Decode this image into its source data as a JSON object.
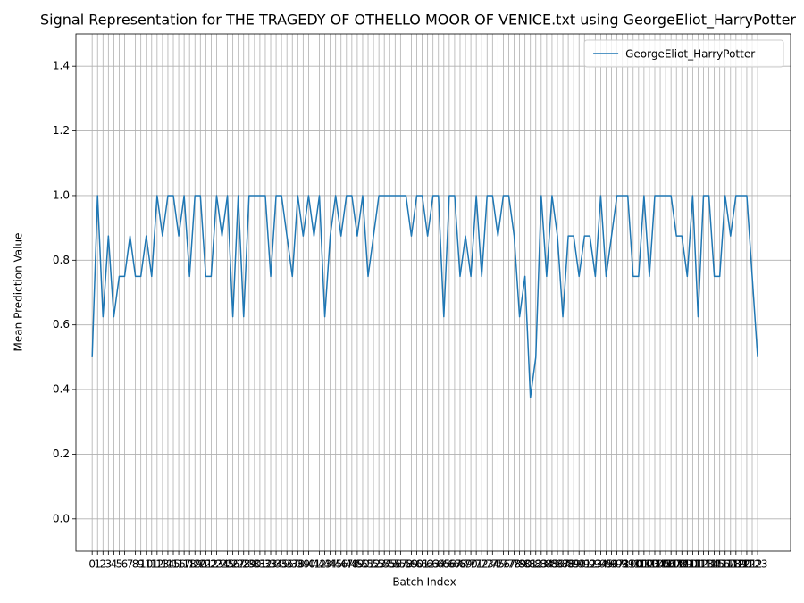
{
  "chart_data": {
    "type": "line",
    "title": "Signal Representation for THE TRAGEDY OF OTHELLO MOOR OF VENICE.txt using GeorgeEliot_HarryPotter",
    "xlabel": "Batch Index",
    "ylabel": "Mean Prediction Value",
    "x": [
      0,
      1,
      2,
      3,
      4,
      5,
      6,
      7,
      8,
      9,
      10,
      11,
      12,
      13,
      14,
      15,
      16,
      17,
      18,
      19,
      20,
      21,
      22,
      23,
      24,
      25,
      26,
      27,
      28,
      29,
      30,
      31,
      32,
      33,
      34,
      35,
      36,
      37,
      38,
      39,
      40,
      41,
      42,
      43,
      44,
      45,
      46,
      47,
      48,
      49,
      50,
      51,
      52,
      53,
      54,
      55,
      56,
      57,
      58,
      59,
      60,
      61,
      62,
      63,
      64,
      65,
      66,
      67,
      68,
      69,
      70,
      71,
      72,
      73,
      74,
      75,
      76,
      77,
      78,
      79,
      80,
      81,
      82,
      83,
      84,
      85,
      86,
      87,
      88,
      89,
      90,
      91,
      92,
      93,
      94,
      95,
      96,
      97,
      98,
      99,
      100,
      101,
      102,
      103,
      104,
      105,
      106,
      107,
      108,
      109,
      110,
      111,
      112,
      113,
      114,
      115,
      116,
      117,
      118,
      119,
      120,
      121,
      122,
      123
    ],
    "series": [
      {
        "name": "GeorgeEliot_HarryPotter",
        "color": "#1f77b4",
        "values": [
          0.5,
          1,
          0.625,
          0.875,
          0.625,
          0.75,
          0.75,
          0.875,
          0.75,
          0.75,
          0.875,
          0.75,
          1,
          0.875,
          1,
          1,
          0.875,
          1,
          0.75,
          1,
          1,
          0.75,
          0.75,
          1,
          0.875,
          1,
          0.625,
          1,
          0.625,
          1,
          1,
          1,
          1,
          0.75,
          1,
          1,
          0.875,
          0.75,
          1,
          0.875,
          1,
          0.875,
          1,
          0.625,
          0.875,
          1,
          0.875,
          1,
          1,
          0.875,
          1,
          0.75,
          0.875,
          1,
          1,
          1,
          1,
          1,
          1,
          0.875,
          1,
          1,
          0.875,
          1,
          1,
          0.625,
          1,
          1,
          0.75,
          0.875,
          0.75,
          1,
          0.75,
          1,
          1,
          0.875,
          1,
          1,
          0.875,
          0.625,
          0.75,
          0.375,
          0.5,
          1,
          0.75,
          1,
          0.875,
          0.625,
          0.875,
          0.875,
          0.75,
          0.875,
          0.875,
          0.75,
          1,
          0.75,
          0.875,
          1,
          1,
          1,
          0.75,
          0.75,
          1,
          0.75,
          1,
          1,
          1,
          1,
          0.875,
          0.875,
          0.75,
          1,
          0.625,
          1,
          1,
          0.75,
          0.75,
          1,
          0.875,
          1,
          1,
          1,
          0.75,
          0.5
        ]
      }
    ],
    "xlim": [
      -3,
      129.1
    ],
    "xticks": [
      0,
      1,
      2,
      3,
      4,
      5,
      6,
      7,
      8,
      9,
      10,
      11,
      12,
      13,
      14,
      15,
      16,
      17,
      18,
      19,
      20,
      21,
      22,
      23,
      24,
      25,
      26,
      27,
      28,
      29,
      30,
      31,
      32,
      33,
      34,
      35,
      36,
      37,
      38,
      39,
      40,
      41,
      42,
      43,
      44,
      45,
      46,
      47,
      48,
      49,
      50,
      51,
      52,
      53,
      54,
      55,
      56,
      57,
      58,
      59,
      60,
      61,
      62,
      63,
      64,
      65,
      66,
      67,
      68,
      69,
      70,
      71,
      72,
      73,
      74,
      75,
      76,
      77,
      78,
      79,
      80,
      81,
      82,
      83,
      84,
      85,
      86,
      87,
      88,
      89,
      90,
      91,
      92,
      93,
      94,
      95,
      96,
      97,
      98,
      99,
      100,
      101,
      102,
      103,
      104,
      105,
      106,
      107,
      108,
      109,
      110,
      111,
      112,
      113,
      114,
      115,
      116,
      117,
      118,
      119,
      120,
      121,
      122,
      123
    ],
    "ylim": [
      -0.1,
      1.5
    ],
    "yticks": [
      {
        "value": 0,
        "label": "0.0"
      },
      0.2,
      0.4,
      0.6,
      0.8,
      {
        "value": 1,
        "label": "1.0"
      },
      1.2,
      1.4
    ],
    "grid": true,
    "legend": "upper right"
  }
}
